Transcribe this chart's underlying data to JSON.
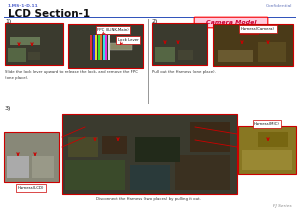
{
  "bg_color": "#ffffff",
  "page_bg": "#ffffff",
  "header_text_left": "1.MS-1-D.11",
  "header_text_right": "Confidential",
  "title": "LCD Section-1",
  "title_underline_color": "#3355bb",
  "step1_label": "1)",
  "step2_label": "2)",
  "step3_label": "3)",
  "step1_caption": "Slide the lock lever upward to release the lock, and remove the FPC\n(one place).",
  "step2_caption": "Pull out the Harness (one place).",
  "step3_caption": "Disconnect the Harness (two places) by pulling it out.",
  "camera_model_label": "Camera Model",
  "camera_model_bg": "#ffccdd",
  "camera_model_border": "#ff0000",
  "camera_model_text": "#cc0033",
  "label_fpc": "FPC (ILINK-Main)",
  "label_lock": "Lock Lever",
  "label_harness_camera": "Harness(Camera)",
  "label_harness_lcd": "Harness(LCD)",
  "label_harness_mic": "Harness(MIC)",
  "footer_text": "FJ Series",
  "red_color": "#cc0000",
  "label_bg": "#ffffff",
  "label_border": "#cc0000",
  "divider_color": "#999999",
  "photo_border": "#cc0000",
  "photo_bg_dark": "#3a3a2e",
  "photo_bg_green": "#2a3a1a",
  "photo_bg_grey": "#555555",
  "photo_bg_brown": "#4a3a18"
}
